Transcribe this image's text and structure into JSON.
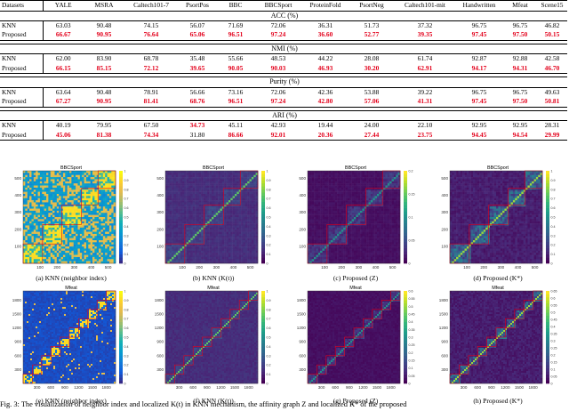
{
  "table": {
    "headers": [
      "Datasets",
      "YALE",
      "MSRA",
      "Caltech101-7",
      "PsortPos",
      "BBC",
      "BBCSport",
      "ProteinFold",
      "PsortNeg",
      "Caltech101-mit",
      "Handwritten",
      "Mfeat",
      "Scene15"
    ],
    "sections": [
      {
        "metric": "ACC (%)",
        "knn": [
          "63.03",
          "90.48",
          "74.15",
          "56.07",
          "71.69",
          "72.06",
          "36.31",
          "51.73",
          "37.32",
          "96.75",
          "96.75",
          "46.82"
        ],
        "proposed": [
          "66.67",
          "90.95",
          "76.64",
          "65.06",
          "96.51",
          "97.24",
          "36.60",
          "52.77",
          "39.35",
          "97.45",
          "97.50",
          "50.15"
        ],
        "knn_best": [
          false,
          false,
          false,
          false,
          false,
          false,
          false,
          false,
          false,
          false,
          false,
          false
        ],
        "proposed_best": [
          true,
          true,
          true,
          true,
          true,
          true,
          true,
          true,
          true,
          true,
          true,
          true
        ]
      },
      {
        "metric": "NMI (%)",
        "knn": [
          "62.00",
          "83.90",
          "68.78",
          "35.48",
          "55.66",
          "48.53",
          "44.22",
          "28.08",
          "61.74",
          "92.87",
          "92.88",
          "42.58"
        ],
        "proposed": [
          "66.15",
          "85.15",
          "72.12",
          "39.65",
          "90.05",
          "90.03",
          "46.93",
          "30.20",
          "62.91",
          "94.17",
          "94.31",
          "46.70"
        ],
        "knn_best": [
          false,
          false,
          false,
          false,
          false,
          false,
          false,
          false,
          false,
          false,
          false,
          false
        ],
        "proposed_best": [
          true,
          true,
          true,
          true,
          true,
          true,
          true,
          true,
          true,
          true,
          true,
          true
        ]
      },
      {
        "metric": "Purity (%)",
        "knn": [
          "63.64",
          "90.48",
          "78.91",
          "56.66",
          "73.16",
          "72.06",
          "42.36",
          "53.88",
          "39.22",
          "96.75",
          "96.75",
          "49.63"
        ],
        "proposed": [
          "67.27",
          "90.95",
          "81.41",
          "68.76",
          "96.51",
          "97.24",
          "42.80",
          "57.06",
          "41.31",
          "97.45",
          "97.50",
          "50.81"
        ],
        "knn_best": [
          false,
          false,
          false,
          false,
          false,
          false,
          false,
          false,
          false,
          false,
          false,
          false
        ],
        "proposed_best": [
          true,
          true,
          true,
          true,
          true,
          true,
          true,
          true,
          true,
          true,
          true,
          true
        ]
      },
      {
        "metric": "ARI (%)",
        "knn": [
          "40.19",
          "79.95",
          "67.50",
          "34.73",
          "45.11",
          "42.93",
          "19.44",
          "24.00",
          "22.10",
          "92.95",
          "92.95",
          "28.31"
        ],
        "proposed": [
          "45.06",
          "81.38",
          "74.34",
          "31.80",
          "86.66",
          "92.01",
          "20.36",
          "27.44",
          "23.75",
          "94.45",
          "94.54",
          "29.99"
        ],
        "knn_best": [
          false,
          false,
          false,
          true,
          false,
          false,
          false,
          false,
          false,
          false,
          false,
          false
        ],
        "proposed_best": [
          true,
          true,
          true,
          false,
          true,
          true,
          true,
          true,
          true,
          true,
          true,
          true
        ]
      }
    ],
    "row_labels": {
      "knn": "KNN",
      "proposed": "Proposed"
    }
  },
  "figure": {
    "panels": [
      {
        "title": "BBCSport",
        "caption": "(a) KNN (neighbor index)",
        "style": "neighbor-bbc",
        "xticks": [
          "100",
          "200",
          "300",
          "400",
          "500"
        ],
        "yticks": [
          "100",
          "200",
          "300",
          "400",
          "500"
        ],
        "cbar": [
          "0",
          "0.1",
          "0.2",
          "0.3",
          "0.4",
          "0.5",
          "0.6",
          "0.7",
          "0.8",
          "0.9",
          "1"
        ]
      },
      {
        "title": "BBCSport",
        "caption": "(b) KNN (K(t))",
        "style": "kt-bbc",
        "xticks": [
          "100",
          "200",
          "300",
          "400",
          "500"
        ],
        "yticks": [
          "100",
          "200",
          "300",
          "400",
          "500"
        ],
        "cbar": [
          "0",
          "0.1",
          "0.2",
          "0.3",
          "0.4",
          "0.5",
          "0.6",
          "0.7",
          "0.8",
          "0.9",
          "1"
        ]
      },
      {
        "title": "BBCSport",
        "caption": "(c) Proposed (Z)",
        "style": "z-bbc",
        "xticks": [
          "100",
          "200",
          "300",
          "400",
          "500"
        ],
        "yticks": [
          "100",
          "200",
          "300",
          "400",
          "500"
        ],
        "cbar": [
          "0",
          "0.05",
          "0.1",
          "0.15",
          "0.2"
        ]
      },
      {
        "title": "BBCSport",
        "caption": "(d) Proposed (K*)",
        "style": "ks-bbc",
        "xticks": [
          "100",
          "200",
          "300",
          "400",
          "500"
        ],
        "yticks": [
          "100",
          "200",
          "300",
          "400",
          "500"
        ],
        "cbar": [
          "0",
          "0.1",
          "0.2",
          "0.3",
          "0.4",
          "0.5",
          "0.6",
          "0.7",
          "0.8",
          "0.9",
          "1"
        ]
      },
      {
        "title": "Mfeat",
        "caption": "(e) KNN (neighbor index)",
        "style": "neighbor-mfeat",
        "xticks": [
          "300",
          "600",
          "900",
          "1200",
          "1500",
          "1800"
        ],
        "yticks": [
          "300",
          "600",
          "900",
          "1200",
          "1500",
          "1800"
        ],
        "cbar": [
          "0",
          "0.1",
          "0.2",
          "0.3",
          "0.4",
          "0.5",
          "0.6",
          "0.7",
          "0.8",
          "0.9",
          "1"
        ]
      },
      {
        "title": "Mfeat",
        "caption": "(f) KNN (K(t))",
        "style": "kt-mfeat",
        "xticks": [
          "300",
          "600",
          "900",
          "1200",
          "1500",
          "1800"
        ],
        "yticks": [
          "300",
          "600",
          "900",
          "1200",
          "1500",
          "1800"
        ],
        "cbar": [
          "0",
          "0.1",
          "0.2",
          "0.3",
          "0.4",
          "0.5",
          "0.6",
          "0.7",
          "0.8",
          "0.9",
          "1"
        ]
      },
      {
        "title": "Mfeat",
        "caption": "(g) Proposed (Z)",
        "style": "z-mfeat",
        "xticks": [
          "300",
          "600",
          "900",
          "1200",
          "1500",
          "1800"
        ],
        "yticks": [
          "300",
          "600",
          "900",
          "1200",
          "1500",
          "1800"
        ],
        "cbar": [
          "0",
          "0.05",
          "0.1",
          "0.15",
          "0.2",
          "0.25",
          "0.3",
          "0.35",
          "0.4",
          "0.45",
          "0.5",
          "0.55",
          "0.6"
        ]
      },
      {
        "title": "Mfeat",
        "caption": "(h) Proposed (K*)",
        "style": "ks-mfeat",
        "xticks": [
          "300",
          "600",
          "900",
          "1200",
          "1500",
          "1800"
        ],
        "yticks": [
          "300",
          "600",
          "900",
          "1200",
          "1500",
          "1800"
        ],
        "cbar": [
          "0",
          "0.05",
          "0.1",
          "0.15",
          "0.2",
          "0.25",
          "0.3",
          "0.35",
          "0.4",
          "0.45",
          "0.5",
          "0.55",
          "0.6",
          "0.65"
        ]
      }
    ],
    "caption": "Fig. 3: The visualization of neighbor index and localized K(t) in KNN mechanism, the affinity graph Z and localized K* of the proposed"
  },
  "colors": {
    "best": "#e3001b",
    "heat_low": "#3a1f8f",
    "heat_high": "#f9e21b",
    "box": "#e3001b"
  }
}
